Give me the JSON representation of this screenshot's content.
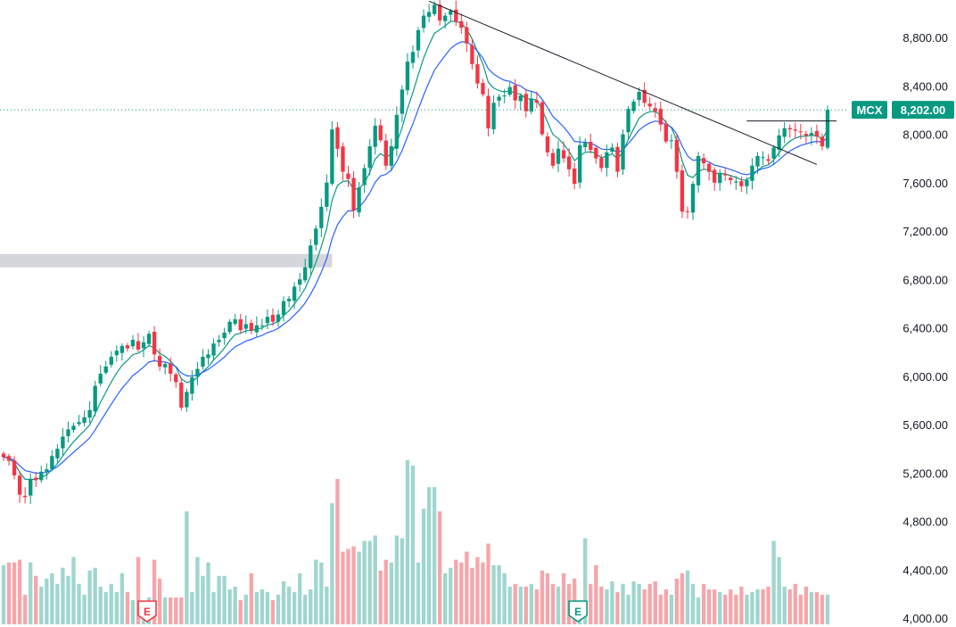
{
  "chart_data": {
    "type": "candlestick",
    "symbol": "MCX",
    "last_price": 8202,
    "last_price_label": "8,202.00",
    "y_axis": {
      "ticks": [
        8800,
        8400,
        8000,
        7600,
        7200,
        6800,
        6400,
        6000,
        5600,
        5200,
        4800,
        4400,
        4000
      ],
      "tick_labels": [
        "8,800.00",
        "8,400.00",
        "8,000.00",
        "7,600.00",
        "7,200.00",
        "6,800.00",
        "6,400.00",
        "6,000.00",
        "5,600.00",
        "5,200.00",
        "4,800.00",
        "4,400.00",
        "4,000.00"
      ]
    },
    "ylim": [
      4000,
      9100
    ],
    "bar_count": 154,
    "candles_close": [
      5330,
      5300,
      5180,
      5020,
      5000,
      5150,
      5140,
      5210,
      5230,
      5340,
      5400,
      5500,
      5560,
      5590,
      5620,
      5660,
      5720,
      5920,
      6020,
      6080,
      6160,
      6210,
      6250,
      6230,
      6300,
      6220,
      6280,
      6350,
      6180,
      6080,
      6100,
      6020,
      5950,
      5740,
      5870,
      5990,
      6060,
      6160,
      6180,
      6270,
      6300,
      6360,
      6450,
      6470,
      6380,
      6430,
      6380,
      6420,
      6420,
      6490,
      6450,
      6510,
      6620,
      6640,
      6740,
      6800,
      6900,
      7080,
      7220,
      7400,
      7600,
      8040,
      7880,
      7690,
      7630,
      7370,
      7560,
      7720,
      7900,
      8070,
      7950,
      7740,
      7900,
      8160,
      8370,
      8600,
      8680,
      8860,
      8980,
      9010,
      9070,
      8940,
      8980,
      9020,
      8930,
      8880,
      8750,
      8580,
      8420,
      8330,
      8050,
      8260,
      8310,
      8320,
      8390,
      8280,
      8320,
      8190,
      8290,
      8260,
      8000,
      7850,
      7740,
      7880,
      7800,
      7710,
      7590,
      7910,
      7930,
      7870,
      7800,
      7720,
      7850,
      7890,
      7690,
      8000,
      8210,
      8270,
      8350,
      8260,
      8230,
      8190,
      8080,
      7940,
      7950,
      7690,
      7360,
      7360,
      7590,
      7820,
      7760,
      7690,
      7600,
      7680,
      7660,
      7620,
      7610,
      7570,
      7620,
      7740,
      7820,
      7810,
      7780,
      7890,
      7990,
      8050,
      8040,
      8030,
      8020,
      7990,
      8010,
      7980,
      7900,
      8202
    ],
    "moving_averages": [
      {
        "name": "short MA",
        "color": "#089981"
      },
      {
        "name": "long MA",
        "color": "#2962ff"
      }
    ],
    "annotations": {
      "trendline": {
        "from": {
          "bar": 79,
          "price": 9100
        },
        "to": {
          "bar": 151,
          "price": 7750
        }
      },
      "resistance_line": {
        "from_bar": 138,
        "to_bar": 153,
        "price": 8110
      },
      "support_zone": {
        "from_bar": 0,
        "to_bar": 61,
        "price_low": 6900,
        "price_high": 7010
      },
      "earnings_events": [
        {
          "bar": 27,
          "label": "E"
        },
        {
          "bar": 105,
          "label": "E"
        }
      ]
    },
    "volume": {
      "values": [
        22,
        23,
        23,
        24,
        11,
        23,
        18,
        14,
        17,
        19,
        15,
        21,
        18,
        25,
        15,
        11,
        20,
        21,
        14,
        12,
        15,
        12,
        19,
        12,
        9,
        25,
        7,
        10,
        24,
        17,
        10,
        10,
        10,
        10,
        42,
        12,
        25,
        18,
        23,
        12,
        18,
        18,
        13,
        14,
        9,
        11,
        19,
        12,
        13,
        12,
        9,
        11,
        16,
        14,
        12,
        19,
        11,
        13,
        24,
        23,
        14,
        45,
        54,
        27,
        28,
        29,
        27,
        31,
        31,
        33,
        20,
        24,
        23,
        33,
        32,
        61,
        59,
        23,
        43,
        51,
        51,
        42,
        19,
        21,
        24,
        23,
        27,
        21,
        25,
        23,
        30,
        22,
        22,
        19,
        14,
        15,
        14,
        14,
        15,
        13,
        20,
        19,
        15,
        14,
        19,
        15,
        17,
        9,
        32,
        15,
        22,
        14,
        13,
        16,
        12,
        15,
        11,
        16,
        15,
        13,
        15,
        16,
        11,
        13,
        11,
        17,
        19,
        20,
        15,
        10,
        15,
        13,
        13,
        12,
        11,
        13,
        11,
        14,
        11,
        12,
        13,
        13,
        14,
        31,
        25,
        14,
        13,
        15,
        11,
        14,
        12,
        12,
        11,
        11
      ]
    },
    "event_label": "E",
    "title": "",
    "xlabel": "",
    "ylabel": ""
  }
}
